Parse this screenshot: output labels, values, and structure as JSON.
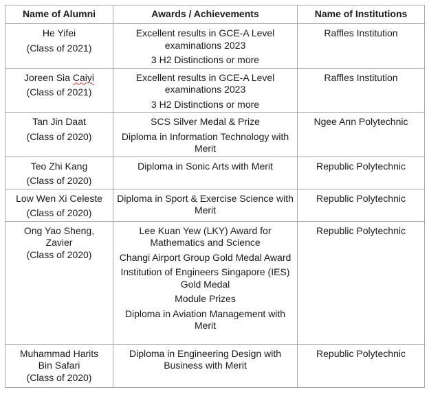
{
  "table": {
    "headers": {
      "name": "Name of Alumni",
      "awards": "Awards / Achievements",
      "institution": "Name of Institutions"
    },
    "rows": [
      {
        "name_lines": [
          "He Yifei"
        ],
        "class": "(Class of 2021)",
        "awards": [
          "Excellent results in GCE-A Level examinations 2023",
          "3 H2 Distinctions or more"
        ],
        "institution": "Raffles Institution"
      },
      {
        "name_lines": [
          "Joreen Sia Caiyi"
        ],
        "class": "(Class of 2021)",
        "awards": [
          "Excellent results in GCE-A Level examinations 2023",
          "3 H2 Distinctions or more"
        ],
        "institution": "Raffles Institution"
      },
      {
        "name_lines": [
          "Tan Jin Daat"
        ],
        "class": "(Class of 2020)",
        "awards": [
          "SCS Silver Medal & Prize",
          "Diploma in Information Technology with Merit"
        ],
        "institution": "Ngee Ann Polytechnic"
      },
      {
        "name_lines": [
          "Teo Zhi Kang"
        ],
        "class": "(Class of 2020)",
        "awards": [
          "Diploma in Sonic Arts with Merit"
        ],
        "institution": "Republic Polytechnic"
      },
      {
        "name_lines": [
          "Low Wen Xi Celeste"
        ],
        "class": "(Class of 2020)",
        "awards": [
          "Diploma in Sport & Exercise Science with Merit"
        ],
        "institution": "Republic Polytechnic"
      },
      {
        "name_lines": [
          "Ong Yao Sheng,",
          "Zavier"
        ],
        "class": "(Class of 2020)",
        "awards": [
          "Lee Kuan Yew (LKY) Award for Mathematics and Science",
          "Changi Airport Group Gold Medal Award",
          "Institution of Engineers Singapore (IES) Gold Medal",
          "Module Prizes",
          "Diploma in Aviation Management with Merit"
        ],
        "institution": "Republic Polytechnic"
      },
      {
        "name_lines": [
          "Muhammad Harits",
          "Bin Safari"
        ],
        "class": "(Class of 2020)",
        "awards": [
          "Diploma in Engineering Design with Business with Merit"
        ],
        "institution": "Republic Polytechnic"
      }
    ]
  }
}
